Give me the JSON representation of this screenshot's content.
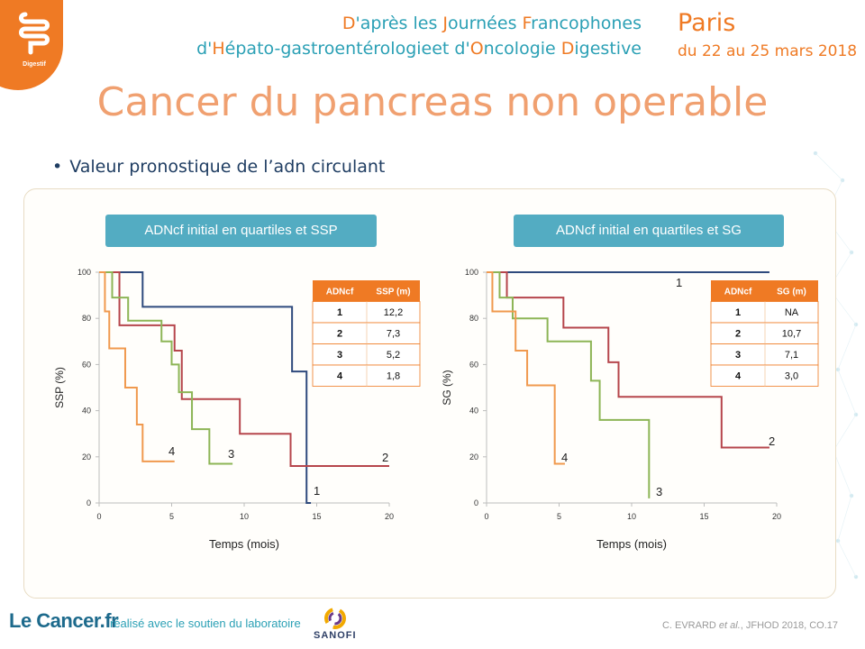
{
  "header": {
    "logo_label": "Digestif",
    "event_line1": [
      {
        "t": "D",
        "hl": true
      },
      {
        "t": "'après les ",
        "hl": false
      },
      {
        "t": "J",
        "hl": true
      },
      {
        "t": "ournées ",
        "hl": false
      },
      {
        "t": "F",
        "hl": true
      },
      {
        "t": "rancophones",
        "hl": false
      }
    ],
    "event_line2": [
      {
        "t": "d'",
        "hl": false
      },
      {
        "t": "H",
        "hl": true
      },
      {
        "t": "épato-gastroentérologieet d'",
        "hl": false
      },
      {
        "t": "O",
        "hl": true
      },
      {
        "t": "ncologie ",
        "hl": false
      },
      {
        "t": "D",
        "hl": true
      },
      {
        "t": "igestive",
        "hl": false
      }
    ],
    "city": "Paris",
    "dates": "du 22 au 25 mars 2018"
  },
  "slide": {
    "title": "Cancer du pancreas non operable",
    "bullet": "Valeur pronostique de l’adn circulant"
  },
  "colors": {
    "q1": "#2e4a7d",
    "q2": "#b6464c",
    "q3": "#8db556",
    "q4": "#f0994e",
    "accent_orange": "#ef7a24",
    "accent_teal": "#53acc2",
    "table_header": "#ef7a24"
  },
  "chart_data": [
    {
      "type": "line",
      "step": true,
      "heading": "ADNcf initial en quartiles et SSP",
      "xlabel": "Temps (mois)",
      "ylabel": "SSP (%)",
      "xlim": [
        0,
        20
      ],
      "ylim": [
        0,
        100
      ],
      "xticks": [
        0,
        5,
        10,
        15,
        20
      ],
      "yticks": [
        0,
        20,
        40,
        60,
        80,
        100
      ],
      "grid": false,
      "series": [
        {
          "name": "1",
          "x": [
            0,
            3,
            13.3,
            14.3,
            14.6
          ],
          "y": [
            100,
            85,
            57,
            0,
            0
          ]
        },
        {
          "name": "2",
          "x": [
            0,
            1.4,
            3.8,
            5.2,
            5.7,
            9.7,
            13.2,
            20
          ],
          "y": [
            100,
            77,
            77,
            66,
            45,
            30,
            16,
            16
          ]
        },
        {
          "name": "3",
          "x": [
            0,
            0.9,
            2.0,
            4.3,
            5.0,
            5.5,
            6.4,
            7.6,
            9.2
          ],
          "y": [
            100,
            89,
            79,
            70,
            60,
            48,
            32,
            17,
            17
          ]
        },
        {
          "name": "4",
          "x": [
            0,
            0.4,
            0.7,
            1.8,
            2.6,
            3.0,
            5.2
          ],
          "y": [
            100,
            83,
            67,
            50,
            34,
            18,
            18
          ]
        }
      ],
      "table": {
        "headers": [
          "ADNcf",
          "SSP (m)"
        ],
        "rows": [
          [
            "1",
            "12,2"
          ],
          [
            "2",
            "7,3"
          ],
          [
            "3",
            "5,2"
          ],
          [
            "4",
            "1,8"
          ]
        ]
      }
    },
    {
      "type": "line",
      "step": true,
      "heading": "ADNcf initial en quartiles et SG",
      "xlabel": "Temps (mois)",
      "ylabel": "SG (%)",
      "xlim": [
        0,
        20
      ],
      "ylim": [
        0,
        100
      ],
      "xticks": [
        0,
        5,
        10,
        15,
        20
      ],
      "yticks": [
        0,
        20,
        40,
        60,
        80,
        100
      ],
      "grid": false,
      "series": [
        {
          "name": "1",
          "x": [
            0,
            19.5
          ],
          "y": [
            100,
            100
          ]
        },
        {
          "name": "2",
          "x": [
            0,
            1.4,
            5.3,
            8.4,
            9.1,
            16.2,
            19.5
          ],
          "y": [
            100,
            89,
            76,
            61,
            46,
            24,
            24
          ]
        },
        {
          "name": "3",
          "x": [
            0,
            0.9,
            1.8,
            4.2,
            7.2,
            7.8,
            11.2,
            11.2
          ],
          "y": [
            100,
            89,
            80,
            70,
            53,
            36,
            2,
            2
          ]
        },
        {
          "name": "4",
          "x": [
            0,
            0.4,
            2.0,
            2.8,
            4.7,
            5.4
          ],
          "y": [
            100,
            83,
            66,
            51,
            17,
            17
          ]
        }
      ],
      "table": {
        "headers": [
          "ADNcf",
          "SG (m)"
        ],
        "rows": [
          [
            "1",
            "NA"
          ],
          [
            "2",
            "10,7"
          ],
          [
            "3",
            "7,1"
          ],
          [
            "4",
            "3,0"
          ]
        ]
      }
    }
  ],
  "footer": {
    "brand": "Le Cancer.fr",
    "support": "réalisé avec le soutien du laboratoire",
    "sponsor": "SANOFI",
    "citation_authors": "C. EVRARD ",
    "citation_etal": "et al.",
    "citation_rest": ", JFHOD 2018, CO.17"
  }
}
